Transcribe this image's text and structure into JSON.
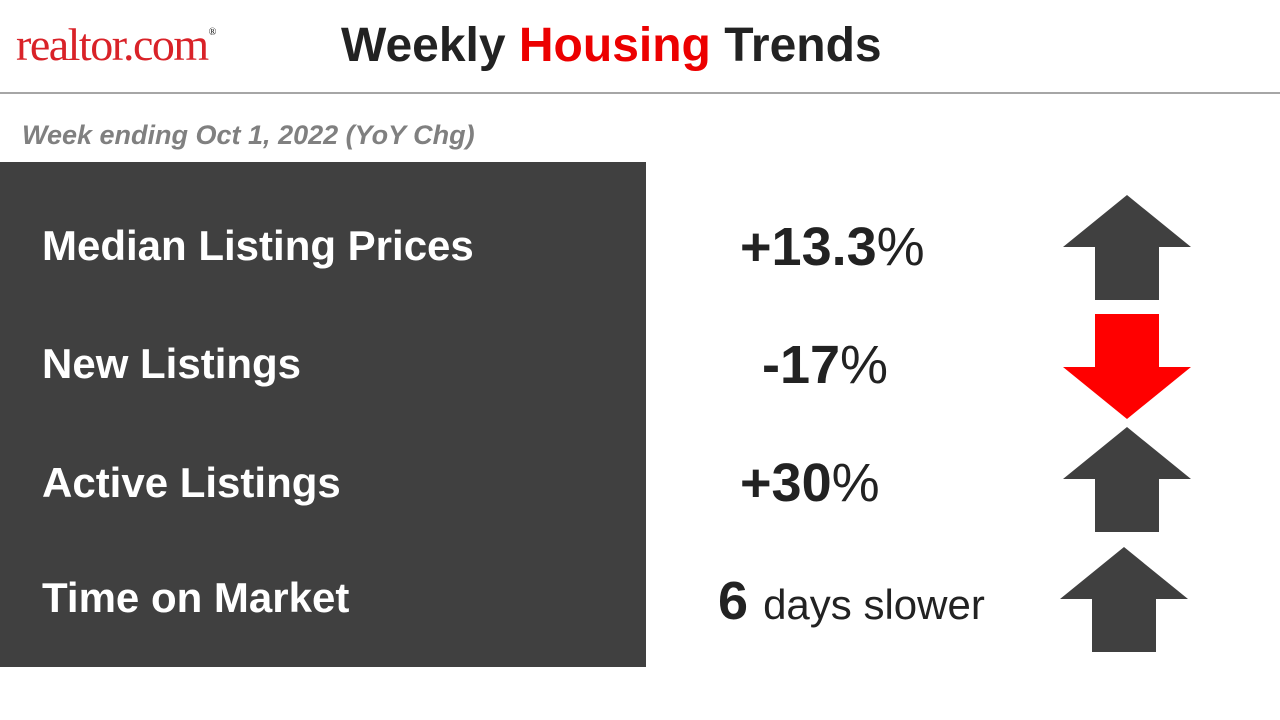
{
  "header": {
    "logo_text_a": "realtor",
    "logo_text_b": ".com",
    "logo_mark": "®",
    "title_part1": "Weekly ",
    "title_highlight": "Housing",
    "title_part2": " Trends"
  },
  "subtitle": "Week ending Oct 1, 2022 (YoY Chg)",
  "metrics": [
    {
      "label": "Median Listing Prices",
      "value": "+13.3",
      "unit": "%",
      "direction": "up",
      "arrow_icon": "arrow-up-icon"
    },
    {
      "label": "New Listings",
      "value": "-17",
      "unit": "%",
      "direction": "down",
      "arrow_icon": "arrow-down-icon"
    },
    {
      "label": "Active Listings",
      "value": "+30",
      "unit": "%",
      "direction": "up",
      "arrow_icon": "arrow-up-icon"
    },
    {
      "label": "Time on Market",
      "value": "6",
      "unit": "days slower",
      "direction": "up",
      "arrow_icon": "arrow-up-icon"
    }
  ],
  "colors": {
    "accent_red": "#ec0000",
    "panel_gray": "#404040",
    "arrow_gray": "#404040",
    "arrow_red": "#ff0000"
  }
}
